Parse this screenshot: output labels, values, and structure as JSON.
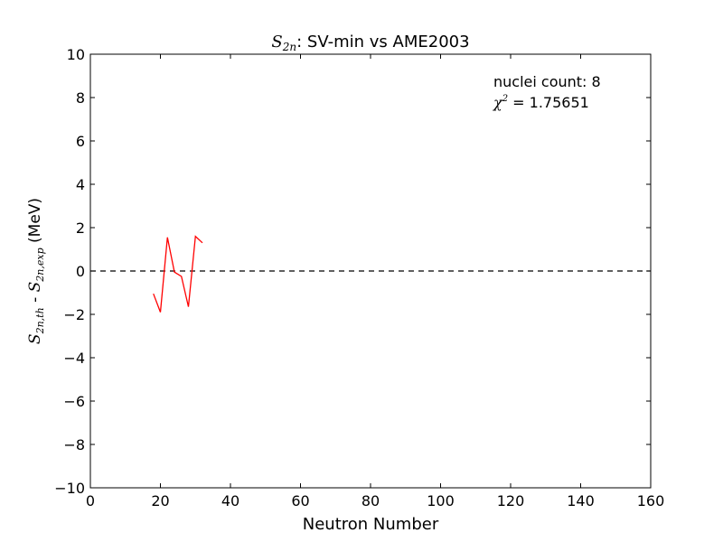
{
  "chart_data": {
    "type": "line",
    "title": {
      "symbol": "S",
      "symbol_sub": "2n",
      "text": ":  SV-min vs AME2003"
    },
    "xlabel": "Neutron Number",
    "ylabel": {
      "part1_symbol": "S",
      "part1_sub": "2n,th",
      "separator": " - ",
      "part2_symbol": "S",
      "part2_sub": "2n,exp",
      "unit": " (MeV)"
    },
    "xlim": [
      0,
      160
    ],
    "ylim": [
      -10,
      10
    ],
    "xticks": [
      0,
      20,
      40,
      60,
      80,
      100,
      120,
      140,
      160
    ],
    "yticks": [
      -10,
      -8,
      -6,
      -4,
      -2,
      0,
      2,
      4,
      6,
      8,
      10
    ],
    "grid": false,
    "reference_line": {
      "y": 0,
      "style": "dashed",
      "color": "#000000"
    },
    "series": [
      {
        "color": "#ff0000",
        "x": [
          18,
          20,
          22,
          24,
          26,
          28,
          30,
          32
        ],
        "y": [
          -1.05,
          -1.9,
          1.55,
          -0.05,
          -0.25,
          -1.65,
          1.6,
          1.3
        ]
      }
    ],
    "annotations": {
      "count_text": "nuclei count: 8",
      "chi_symbol": "χ",
      "chi_sup": "2",
      "chi_value": " = 1.75651"
    }
  }
}
